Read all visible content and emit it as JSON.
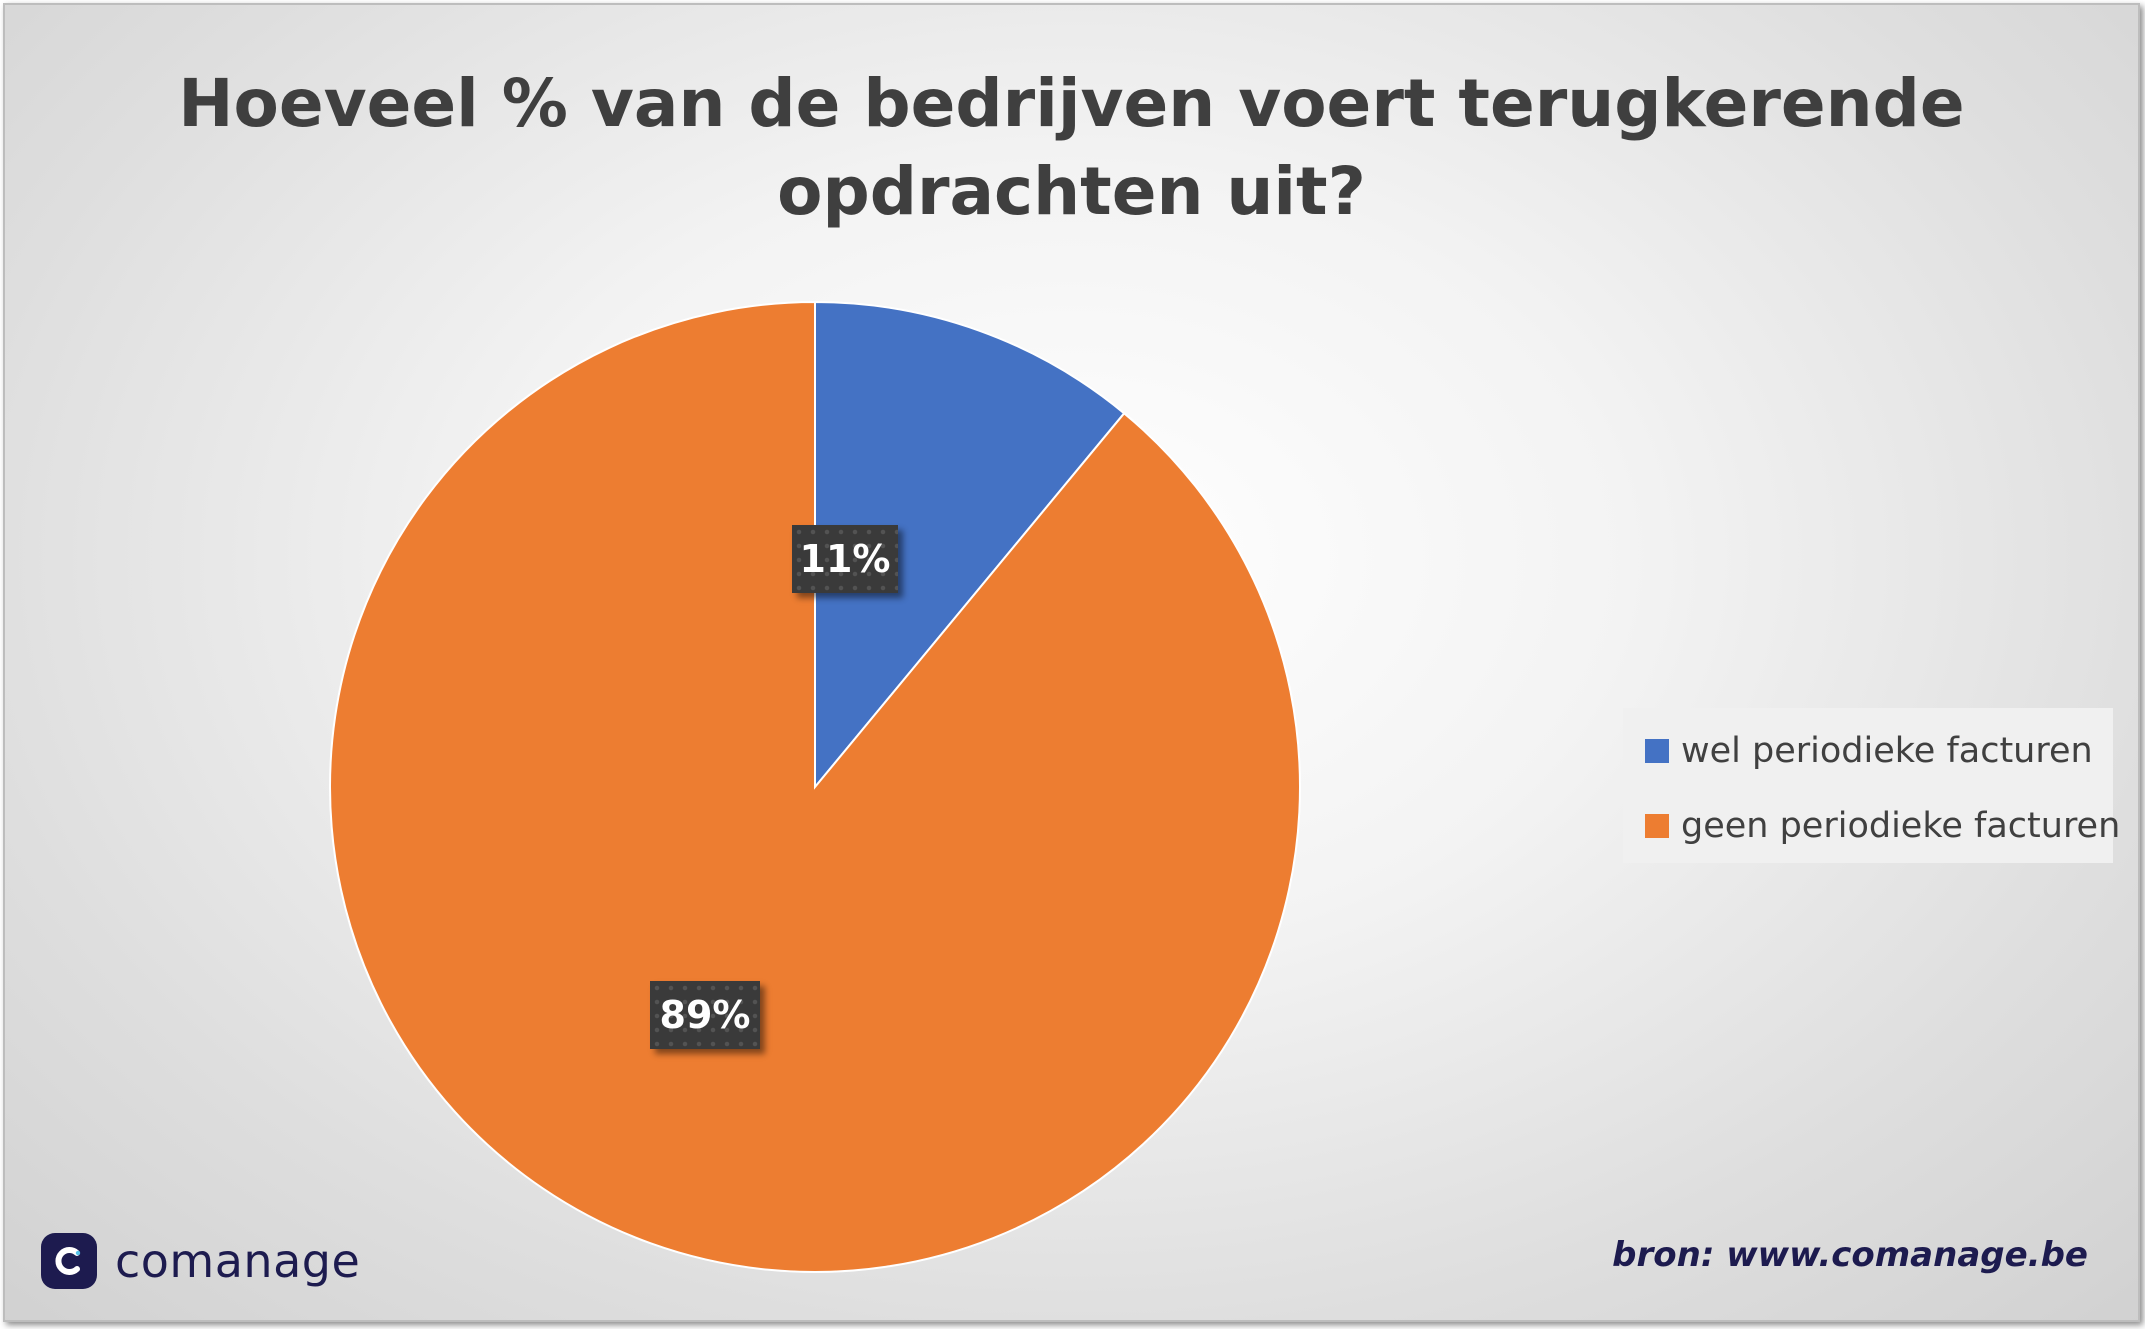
{
  "chart_data": {
    "type": "pie",
    "title": "Hoeveel % van de bedrijven voert terugkerende opdrachten uit?",
    "title_lines": [
      "Hoeveel % van de bedrijven voert terugkerende",
      "opdrachten uit?"
    ],
    "categories": [
      "wel periodieke facturen",
      "geen periodieke facturen"
    ],
    "values": [
      11,
      89
    ],
    "data_labels": [
      "11%",
      "89%"
    ],
    "colors": [
      "#4472c4",
      "#ed7d31"
    ],
    "legend_position": "right"
  },
  "branding": {
    "logo_text": "comanage",
    "logo_icon": "comanage-logo-icon",
    "source_text": "bron: www.comanage.be"
  }
}
